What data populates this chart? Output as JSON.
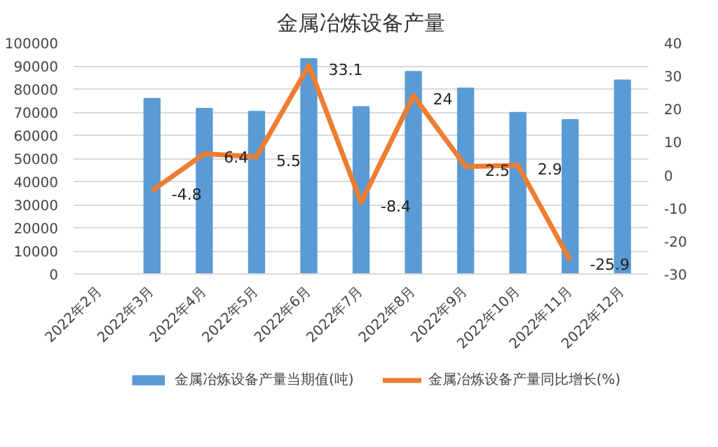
{
  "chart_data": {
    "type": "bar",
    "title": "金属冶炼设备产量",
    "categories": [
      "2022年2月",
      "2022年3月",
      "2022年4月",
      "2022年5月",
      "2022年6月",
      "2022年7月",
      "2022年8月",
      "2022年9月",
      "2022年10月",
      "2022年11月",
      "2022年12月"
    ],
    "series": [
      {
        "name": "金属冶炼设备产量当期值(吨)",
        "color": "#5b9bd5",
        "values": [
          null,
          75800,
          71500,
          70200,
          93000,
          72300,
          87500,
          80300,
          69800,
          66700,
          83800
        ]
      },
      {
        "name": "金属冶炼设备产量同比增长(%)",
        "type": "line",
        "axis": "y2",
        "color": "#ed7d31",
        "values": [
          null,
          -4.8,
          6.4,
          5.5,
          33.1,
          -8.4,
          24,
          2.5,
          2.9,
          -25.9,
          null
        ],
        "value_labels": [
          null,
          "-4.8",
          "6.4",
          "5.5",
          "33.1",
          "-8.4",
          "24",
          "2.5",
          "2.9",
          "-25.9",
          null
        ]
      }
    ],
    "ylim": [
      0,
      100000
    ],
    "yticks": [
      0,
      10000,
      20000,
      30000,
      40000,
      50000,
      60000,
      70000,
      80000,
      90000,
      100000
    ],
    "y2lim": [
      -30,
      40
    ],
    "y2ticks": [
      -30,
      -20,
      -10,
      0,
      10,
      20,
      30,
      40
    ],
    "grid": "y",
    "legend": "bottom"
  }
}
